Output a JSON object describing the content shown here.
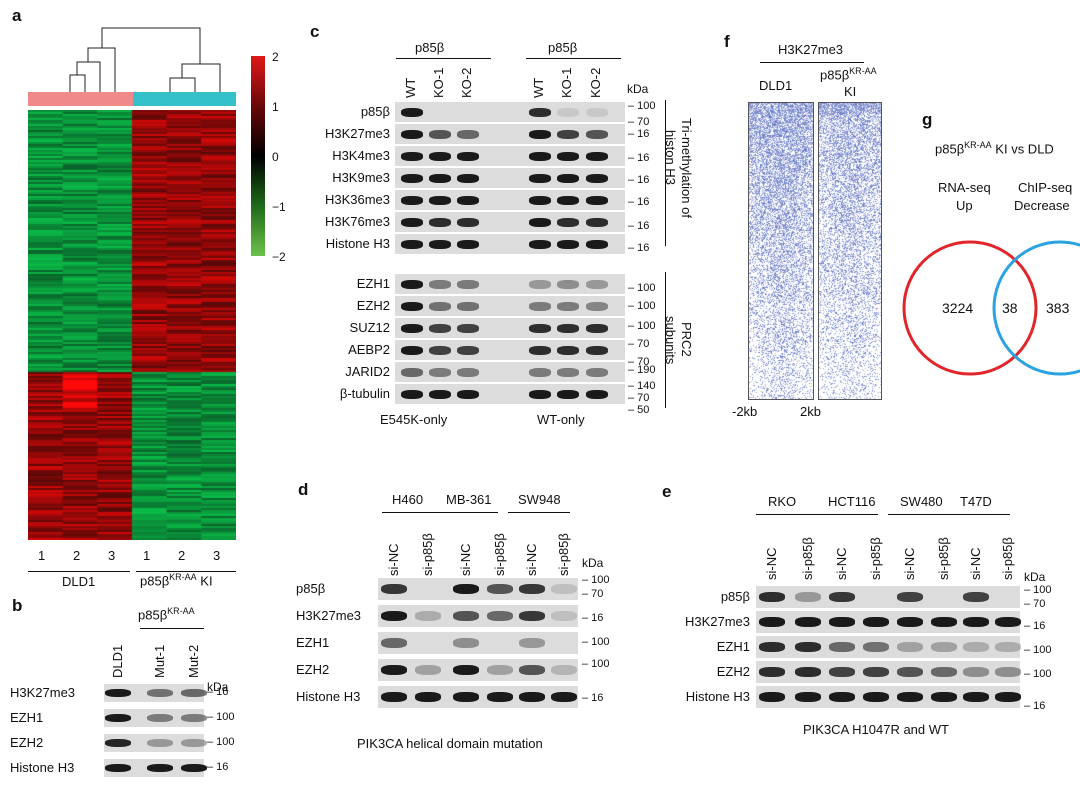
{
  "panels": {
    "a": {
      "letter": "a",
      "colorbar_ticks": [
        "2",
        "1",
        "0",
        "−1",
        "−2"
      ],
      "columns": [
        "1",
        "2",
        "3",
        "1",
        "2",
        "3"
      ],
      "group1": "DLD1",
      "group2_prefix": "p85β",
      "group2_sup": "KR-AA",
      "group2_suffix": " KI",
      "colors": {
        "group1": "#f08a8a",
        "group2": "#35c1c9",
        "high": "#e01818",
        "mid": "#000000",
        "low": "#59b84a"
      }
    },
    "b": {
      "letter": "b",
      "header_prefix": "p85β",
      "header_sup": "KR-AA",
      "lanes": [
        "DLD1",
        "Mut-1",
        "Mut-2"
      ],
      "kda": "kDa",
      "rows": [
        {
          "name": "H3K27me3",
          "mw": "16"
        },
        {
          "name": "EZH1",
          "mw": "100"
        },
        {
          "name": "EZH2",
          "mw": "100"
        },
        {
          "name": "Histone H3",
          "mw": "16"
        }
      ]
    },
    "c": {
      "letter": "c",
      "group_header": "p85β",
      "lanes": [
        "WT",
        "KO-1",
        "KO-2",
        "WT",
        "KO-1",
        "KO-2"
      ],
      "kda": "kDa",
      "rows_top": [
        "p85β",
        "H3K27me3",
        "H3K4me3",
        "H3K9me3",
        "H3K36me3",
        "H3K76me3",
        "Histone H3"
      ],
      "mw_top": [
        "100",
        "70",
        "16",
        "16",
        "16",
        "16",
        "16",
        "16"
      ],
      "rows_bottom": [
        "EZH1",
        "EZH2",
        "SUZ12",
        "AEBP2",
        "JARID2",
        "β-tubulin"
      ],
      "mw_bottom": [
        "100",
        "100",
        "100",
        "70",
        "70",
        "190",
        "140",
        "70",
        "50"
      ],
      "side_top_1": "Tri-methylation of",
      "side_top_2": "histon H3",
      "side_bottom_1": "PRC2",
      "side_bottom_2": "subunits",
      "footer_left": "E545K-only",
      "footer_right": "WT-only"
    },
    "d": {
      "letter": "d",
      "cell_lines": [
        "H460",
        "MB-361",
        "SW948"
      ],
      "lanes": [
        "si-NC",
        "si-p85β",
        "si-NC",
        "si-p85β",
        "si-NC",
        "si-p85β"
      ],
      "kda": "kDa",
      "rows": [
        "p85β",
        "H3K27me3",
        "EZH1",
        "EZH2",
        "Histone H3"
      ],
      "mw": [
        "100",
        "70",
        "16",
        "100",
        "100",
        "16"
      ],
      "footer": "PIK3CA helical domain mutation"
    },
    "e": {
      "letter": "e",
      "cell_lines": [
        "RKO",
        "HCT116",
        "SW480",
        "T47D"
      ],
      "lanes": [
        "si-NC",
        "si-p85β",
        "si-NC",
        "si-p85β",
        "si-NC",
        "si-p85β",
        "si-NC",
        "si-p85β"
      ],
      "kda": "kDa",
      "rows": [
        "p85β",
        "H3K27me3",
        "EZH1",
        "EZH2",
        "Histone H3"
      ],
      "mw": [
        "100",
        "70",
        "16",
        "100",
        "100",
        "16"
      ],
      "footer": "PIK3CA H1047R and WT"
    },
    "f": {
      "letter": "f",
      "title": "H3K27me3",
      "col1": "DLD1",
      "col2_prefix": "p85β",
      "col2_sup": "KR-AA",
      "col2_line2": "KI",
      "axis_left": "-2kb",
      "axis_right": "2kb",
      "color": "#3d55b8"
    },
    "g": {
      "letter": "g",
      "title_prefix": "p85β",
      "title_sup": "KR-AA",
      "title_suffix": "  KI vs DLD",
      "set1_line1": "RNA-seq",
      "set1_line2": "Up",
      "set2_line1": "ChIP-seq",
      "set2_line2": "Decrease",
      "only1": "3224",
      "both": "38",
      "only2": "383",
      "colors": {
        "set1": "#e0262b",
        "set2": "#2aa3e0"
      }
    }
  }
}
